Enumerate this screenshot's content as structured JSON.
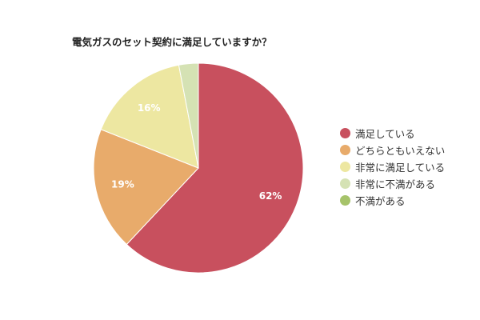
{
  "chart_data": {
    "type": "pie",
    "title": "電気ガスのセット契約に満足していますか？",
    "categories": [
      "満足している",
      "どちらともいえない",
      "非常に満足している",
      "非常に不満がある",
      "不満がある"
    ],
    "values": [
      62,
      19,
      16,
      3,
      0
    ],
    "data_labels": [
      "62%",
      "19%",
      "16%",
      "",
      ""
    ],
    "colors": [
      "#c8505e",
      "#e8ab6b",
      "#ede7a1",
      "#d5e2b4",
      "#a6c36a"
    ],
    "legend_position": "right"
  }
}
